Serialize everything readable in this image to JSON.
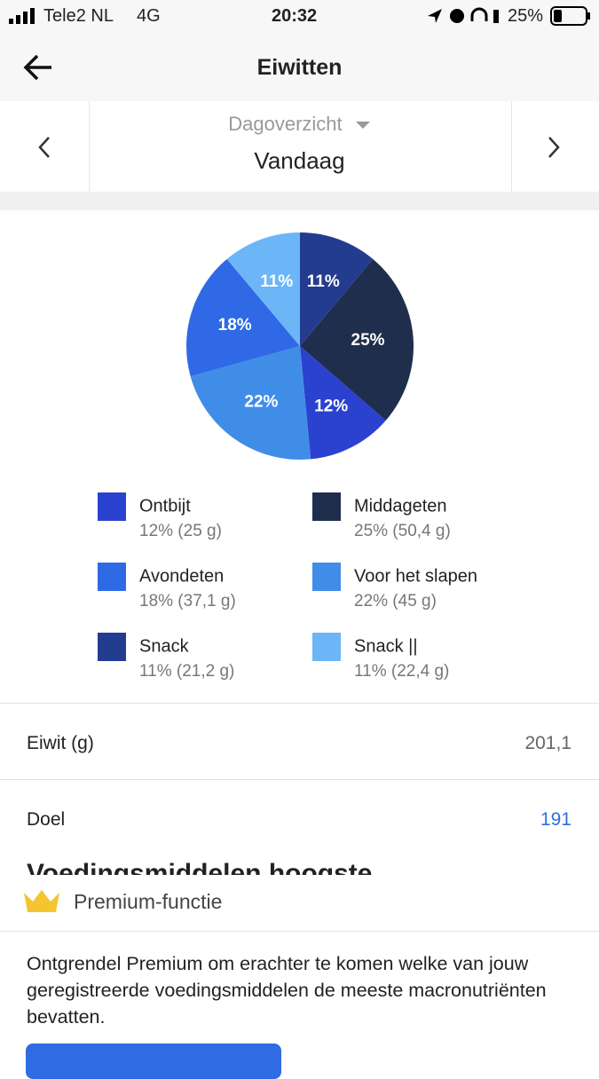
{
  "status_bar": {
    "carrier": "Tele2 NL",
    "network": "4G",
    "time": "20:32",
    "battery": "25%"
  },
  "header": {
    "title": "Eiwitten"
  },
  "selector": {
    "mode": "Dagoverzicht",
    "period": "Vandaag"
  },
  "chart_data": {
    "type": "pie",
    "categories": [
      "Snack",
      "Middageten",
      "Ontbijt",
      "Voor het slapen",
      "Avondeten",
      "Snack ||"
    ],
    "values": [
      11,
      25,
      12,
      22,
      18,
      11
    ],
    "value_labels": [
      "11%",
      "25%",
      "12%",
      "22%",
      "18%",
      "11%"
    ],
    "colors": [
      "#243c8f",
      "#1f2e4c",
      "#2b41cf",
      "#408de7",
      "#2f69e6",
      "#6cb6f8"
    ],
    "legend_details": [
      "11% (21,2 g)",
      "25% (50,4 g)",
      "12% (25 g)",
      "22% (45 g)",
      "18% (37,1 g)",
      "11% (22,4 g)"
    ]
  },
  "rows": [
    {
      "label": "Eiwit (g)",
      "value": "201,1"
    },
    {
      "label": "Doel",
      "value": "191"
    }
  ],
  "section_title": "Voedingsmiddelen hoogste",
  "premium": {
    "title": "Premium-functie",
    "text": "Ontgrendel Premium om erachter te komen welke van jouw geregistreerde voedingsmiddelen de meeste macronutriënten bevatten."
  }
}
